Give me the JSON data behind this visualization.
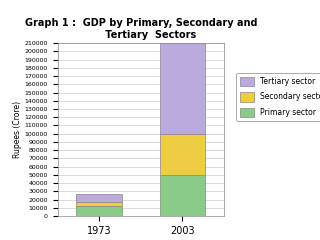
{
  "title": "Graph 1 :  GDP by Primary, Secondary and\n      Tertiary  Sectors",
  "categories": [
    "1973",
    "2003"
  ],
  "primary": [
    12000,
    50000
  ],
  "secondary": [
    5000,
    50000
  ],
  "tertiary": [
    10000,
    110000
  ],
  "primary_color": "#88cc88",
  "secondary_color": "#eecc44",
  "tertiary_color": "#bbaadd",
  "ylabel": "Rupees (Crore)",
  "ylim": [
    0,
    210000
  ],
  "ytick_step": 10000,
  "bar_width": 0.55,
  "legend_labels": [
    "Tertiary sector",
    "Secondary sector",
    "Primary sector"
  ],
  "background_color": "#ffffff",
  "grid_color": "#cccccc"
}
